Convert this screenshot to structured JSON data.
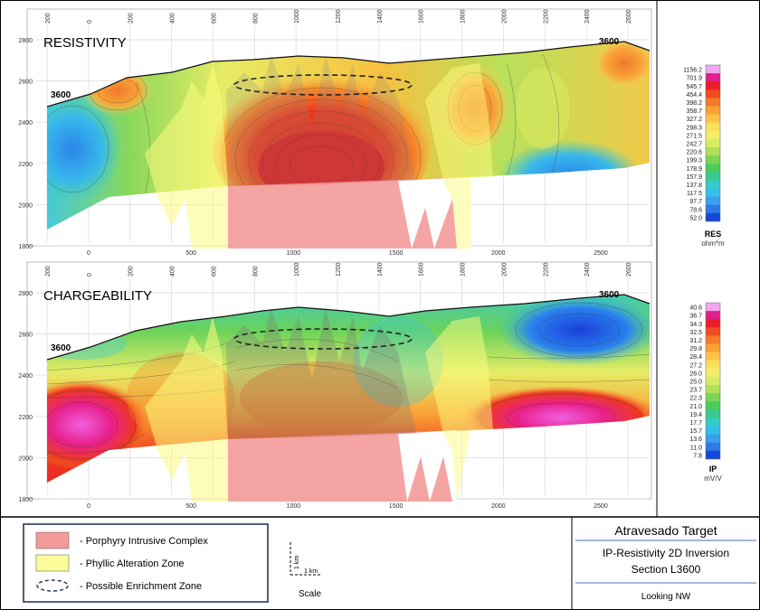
{
  "panels": [
    {
      "title": "RESISTIVITY",
      "contour_id": "3600",
      "top_axis": [
        "200",
        "0",
        "200",
        "400",
        "600",
        "800",
        "1000",
        "1200",
        "1400",
        "1600",
        "1800",
        "2000",
        "2200",
        "2400",
        "2600"
      ],
      "bottom_axis": [
        "0",
        "500",
        "1000",
        "1500",
        "2000",
        "2500"
      ],
      "y_axis": [
        "2800",
        "2600",
        "2400",
        "2200",
        "2000",
        "1800"
      ]
    },
    {
      "title": "CHARGEABILITY",
      "contour_id": "3600",
      "top_axis": [
        "200",
        "0",
        "200",
        "400",
        "600",
        "800",
        "1000",
        "1200",
        "1400",
        "1600",
        "1800",
        "2000",
        "2200",
        "2400",
        "2600"
      ],
      "bottom_axis": [
        "0",
        "500",
        "1000",
        "1500",
        "2000",
        "2500"
      ],
      "y_axis": [
        "2800",
        "2600",
        "2400",
        "2200",
        "2000",
        "1800"
      ]
    }
  ],
  "scales": [
    {
      "label": "RES",
      "unit": "ohm*m",
      "values": [
        "1156.2",
        "701.9",
        "545.7",
        "454.4",
        "398.2",
        "358.7",
        "327.2",
        "298.3",
        "271.5",
        "242.7",
        "220.6",
        "199.3",
        "178.9",
        "157.9",
        "137.8",
        "117.5",
        "97.7",
        "78.6",
        "52.0"
      ],
      "colors": [
        "#f0a8f0",
        "#e0208c",
        "#ea1e2a",
        "#f24a22",
        "#f57a2a",
        "#f9a236",
        "#fcc248",
        "#f9df5a",
        "#f2ee6a",
        "#d6ec62",
        "#aee05a",
        "#7cd454",
        "#4ccc58",
        "#3cc890",
        "#36ccc4",
        "#34c0ea",
        "#3aa0ee",
        "#2e7ae8",
        "#1448d8"
      ]
    },
    {
      "label": "IP",
      "unit": "mV/V",
      "values": [
        "40.6",
        "36.7",
        "34.3",
        "32.5",
        "31.2",
        "29.8",
        "28.4",
        "27.2",
        "26.0",
        "25.0",
        "23.7",
        "22.3",
        "21.0",
        "19.4",
        "17.7",
        "15.7",
        "13.6",
        "11.0",
        "7.8"
      ],
      "colors": [
        "#f0a8f0",
        "#e0208c",
        "#ea1e2a",
        "#f24a22",
        "#f57a2a",
        "#f9a236",
        "#fcc248",
        "#f9df5a",
        "#f2ee6a",
        "#d6ec62",
        "#aee05a",
        "#7cd454",
        "#4ccc58",
        "#3cc890",
        "#36ccc4",
        "#34c0ea",
        "#3aa0ee",
        "#2e7ae8",
        "#1448d8"
      ]
    }
  ],
  "legend": {
    "items": [
      {
        "label": "- Porphyry Intrusive Complex",
        "color": "#f49a9a"
      },
      {
        "label": "- Phyllic Alteration Zone",
        "color": "#fcfc9a"
      },
      {
        "label": "- Possible Enrichment Zone",
        "color": "#2a3a60"
      }
    ],
    "scale_label": "Scale",
    "scale_v": "1 km",
    "scale_h": "1 km"
  },
  "title_block": {
    "target": "Atravesado Target",
    "subtitle_line1": "IP-Resistivity 2D Inversion",
    "subtitle_line2": "Section L3600",
    "view": "Looking NW"
  }
}
